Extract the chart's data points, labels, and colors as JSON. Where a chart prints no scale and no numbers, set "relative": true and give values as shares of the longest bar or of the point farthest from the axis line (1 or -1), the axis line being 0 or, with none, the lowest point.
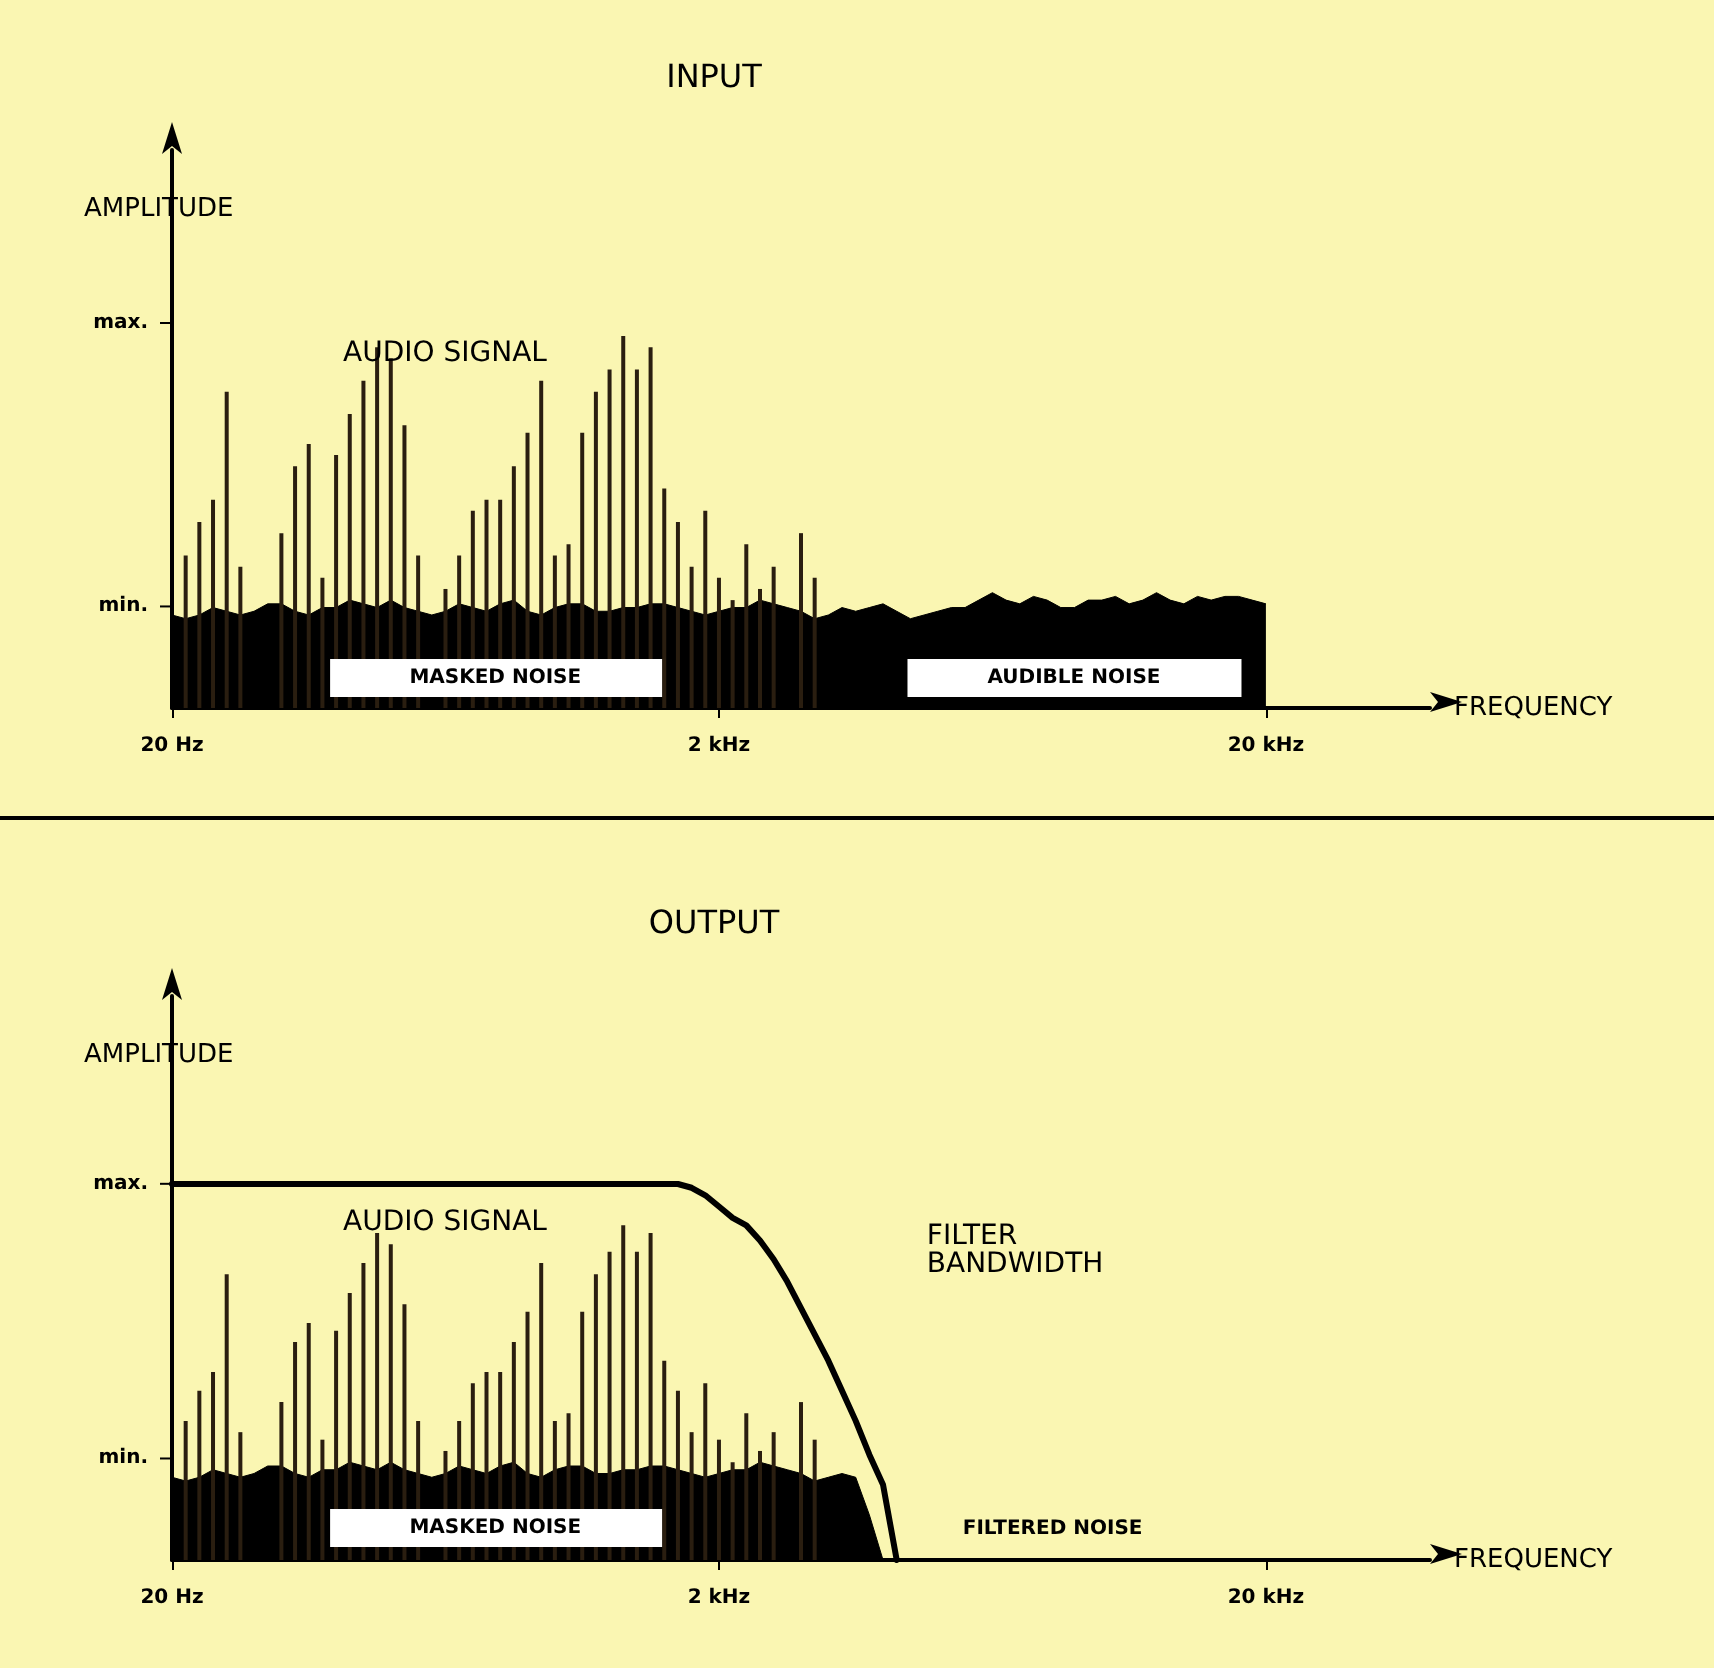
{
  "chart_data": [
    {
      "type": "bar",
      "title": "INPUT",
      "xlabel": "FREQUENCY",
      "ylabel": "AMPLITUDE",
      "relative": true,
      "categories": [
        "20 Hz",
        null,
        null,
        null,
        null,
        null,
        null,
        null,
        null,
        null,
        null,
        null,
        null,
        null,
        null,
        null,
        null,
        null,
        null,
        null,
        null,
        null,
        null,
        null,
        null,
        null,
        null,
        null,
        null,
        null,
        null,
        null,
        null,
        null,
        null,
        null,
        null,
        null,
        null,
        null,
        "2 kHz",
        null,
        null,
        null,
        null,
        null,
        null,
        null,
        null,
        null,
        null,
        null,
        null,
        null,
        null,
        null,
        null,
        null,
        null,
        null,
        null,
        null,
        null,
        null,
        null,
        null,
        null,
        null,
        null,
        null,
        null,
        null,
        null,
        null,
        null,
        null,
        null,
        null,
        null,
        null,
        "20 kHz",
        null,
        null,
        null,
        null,
        null,
        null,
        null,
        null,
        null,
        null,
        null,
        null
      ],
      "series": [
        {
          "type": "area",
          "color": "#000000",
          "values": [
            0.25,
            0.24,
            0.25,
            0.27,
            0.26,
            0.25,
            0.26,
            0.28,
            0.28,
            0.26,
            0.25,
            0.27,
            0.27,
            0.29,
            0.28,
            0.27,
            0.29,
            0.27,
            0.26,
            0.25,
            0.26,
            0.28,
            0.27,
            0.26,
            0.28,
            0.29,
            0.26,
            0.25,
            0.27,
            0.28,
            0.28,
            0.26,
            0.26,
            0.27,
            0.27,
            0.28,
            0.28,
            0.27,
            0.26,
            0.25,
            0.26,
            0.27,
            0.27,
            0.29,
            0.28,
            0.27,
            0.26,
            0.24,
            0.25,
            0.27,
            0.26,
            0.27,
            0.28,
            0.26,
            0.24,
            0.25,
            0.26,
            0.27,
            0.27,
            0.29,
            0.31,
            0.29,
            0.28,
            0.3,
            0.29,
            0.27,
            0.27,
            0.29,
            0.29,
            0.3,
            0.28,
            0.29,
            0.31,
            0.29,
            0.28,
            0.3,
            0.29,
            0.3,
            0.3,
            0.29,
            0.28,
            null,
            null,
            null,
            null,
            null,
            null,
            null,
            null,
            null,
            null,
            null,
            null
          ]
        },
        {
          "type": "bar",
          "color": "#2a1e10",
          "values": [
            null,
            0.41,
            0.5,
            0.56,
            0.85,
            0.38,
            null,
            null,
            0.47,
            0.65,
            0.71,
            0.35,
            0.68,
            0.79,
            0.88,
            0.97,
            0.94,
            0.76,
            0.41,
            null,
            0.32,
            0.41,
            0.53,
            0.56,
            0.56,
            0.65,
            0.74,
            0.88,
            0.41,
            0.44,
            0.74,
            0.85,
            0.91,
            1,
            0.91,
            0.97,
            0.59,
            0.5,
            0.38,
            0.53,
            0.35,
            0.29,
            0.44,
            0.32,
            0.38,
            null,
            0.47,
            0.35,
            null,
            null,
            null,
            null,
            null,
            null,
            null,
            null,
            null,
            null,
            null,
            null,
            null,
            null,
            null,
            null,
            null,
            null,
            null,
            null,
            null,
            null,
            null,
            null,
            null,
            null,
            null,
            null,
            null,
            null,
            null,
            null,
            null,
            null,
            null,
            null,
            null,
            null,
            null,
            null,
            null,
            null,
            null,
            null,
            null
          ]
        }
      ],
      "annotations": [
        "AUDIO SIGNAL",
        "MASKED NOISE",
        "AUDIBLE NOISE",
        "min.",
        "max."
      ]
    },
    {
      "type": "bar",
      "title": "OUTPUT",
      "xlabel": "FREQUENCY",
      "ylabel": "AMPLITUDE",
      "relative": true,
      "categories": [
        "20 Hz",
        null,
        null,
        null,
        null,
        null,
        null,
        null,
        null,
        null,
        null,
        null,
        null,
        null,
        null,
        null,
        null,
        null,
        null,
        null,
        null,
        null,
        null,
        null,
        null,
        null,
        null,
        null,
        null,
        null,
        null,
        null,
        null,
        null,
        null,
        null,
        null,
        null,
        null,
        null,
        "2 kHz",
        null,
        null,
        null,
        null,
        null,
        null,
        null,
        null,
        null,
        null,
        null,
        null,
        null,
        null,
        null,
        null,
        null,
        null,
        null,
        null,
        null,
        null,
        null,
        null,
        null,
        null,
        null,
        null,
        null,
        null,
        null,
        null,
        null,
        null,
        null,
        null,
        null,
        null,
        null,
        "20 kHz",
        null,
        null,
        null,
        null,
        null,
        null,
        null,
        null,
        null,
        null,
        null,
        null
      ],
      "series": [
        {
          "type": "area",
          "color": "#000000",
          "values": [
            0.22,
            0.21,
            0.22,
            0.24,
            0.23,
            0.22,
            0.23,
            0.25,
            0.25,
            0.23,
            0.22,
            0.24,
            0.24,
            0.26,
            0.25,
            0.24,
            0.26,
            0.24,
            0.23,
            0.22,
            0.23,
            0.25,
            0.24,
            0.23,
            0.25,
            0.26,
            0.23,
            0.22,
            0.24,
            0.25,
            0.25,
            0.23,
            0.23,
            0.24,
            0.24,
            0.25,
            0.25,
            0.24,
            0.23,
            0.22,
            0.23,
            0.24,
            0.24,
            0.26,
            0.25,
            0.24,
            0.23,
            0.21,
            0.22,
            0.23,
            0.22,
            0.12,
            0,
            null,
            null,
            null,
            null,
            null,
            null,
            null,
            null,
            null,
            null,
            null,
            null,
            null,
            null,
            null,
            null,
            null,
            null,
            null,
            null,
            null,
            null,
            null,
            null,
            null,
            null,
            null,
            null,
            null,
            null,
            null,
            null,
            null,
            null,
            null,
            null,
            null,
            null,
            null,
            null
          ]
        },
        {
          "type": "bar",
          "color": "#2a1e10",
          "values": [
            null,
            0.37,
            0.45,
            0.5,
            0.76,
            0.34,
            null,
            null,
            0.42,
            0.58,
            0.63,
            0.32,
            0.61,
            0.71,
            0.79,
            0.87,
            0.84,
            0.68,
            0.37,
            null,
            0.29,
            0.37,
            0.47,
            0.5,
            0.5,
            0.58,
            0.66,
            0.79,
            0.37,
            0.39,
            0.66,
            0.76,
            0.82,
            0.89,
            0.82,
            0.87,
            0.53,
            0.45,
            0.34,
            0.47,
            0.32,
            0.26,
            0.39,
            0.29,
            0.34,
            null,
            0.42,
            0.32,
            null,
            null,
            null,
            null,
            null,
            null,
            null,
            null,
            null,
            null,
            null,
            null,
            null,
            null,
            null,
            null,
            null,
            null,
            null,
            null,
            null,
            null,
            null,
            null,
            null,
            null,
            null,
            null,
            null,
            null,
            null,
            null,
            null,
            null,
            null,
            null,
            null,
            null,
            null,
            null,
            null,
            null,
            null,
            null,
            null
          ]
        },
        {
          "type": "line",
          "color": "#000000",
          "values": [
            1,
            1,
            1,
            1,
            1,
            1,
            1,
            1,
            1,
            1,
            1,
            1,
            1,
            1,
            1,
            1,
            1,
            1,
            1,
            1,
            1,
            1,
            1,
            1,
            1,
            1,
            1,
            1,
            1,
            1,
            1,
            1,
            1,
            1,
            1,
            1,
            1,
            1,
            0.99,
            0.97,
            0.94,
            0.91,
            0.89,
            0.85,
            0.8,
            0.74,
            0.67,
            0.6,
            0.53,
            0.45,
            0.37,
            0.28,
            0.2,
            0,
            null,
            null,
            null,
            null,
            null,
            null,
            null,
            null,
            null,
            null,
            null,
            null,
            null,
            null,
            null,
            null,
            null,
            null,
            null,
            null,
            null,
            null,
            null,
            null,
            null,
            null,
            null,
            null,
            null,
            null,
            null,
            null,
            null,
            null,
            null,
            null,
            null,
            null,
            null
          ]
        }
      ],
      "annotations": [
        "AUDIO SIGNAL",
        "FILTER\nBANDWIDTH",
        "MASKED NOISE",
        "FILTERED NOISE",
        "min.",
        "max."
      ]
    }
  ]
}
